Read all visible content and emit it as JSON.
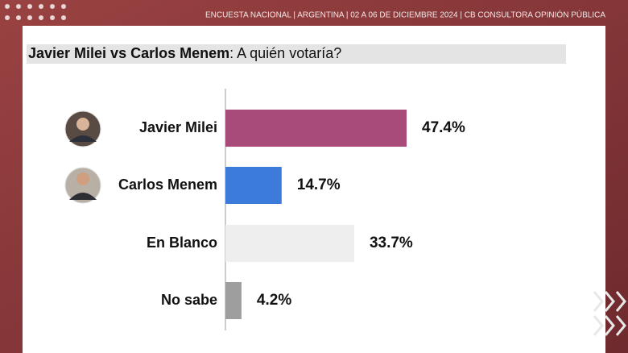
{
  "header": "ENCUESTA NACIONAL  |  ARGENTINA  | 02 A 06 DE DICIEMBRE 2024 | CB CONSULTORA OPINIÓN PÚBLICA",
  "chart_data": {
    "type": "hbar",
    "title": {
      "bold": "Javier Milei vs Carlos Menem",
      "rest": ": A quién votaría?"
    },
    "categories": [
      "Javier Milei",
      "Carlos Menem",
      "En Blanco",
      "No sabe"
    ],
    "values": [
      47.4,
      14.7,
      33.7,
      4.2
    ],
    "value_labels": [
      "47.4%",
      "14.7%",
      "33.7%",
      "4.2%"
    ],
    "colors": [
      "#a84b7b",
      "#3c7bd9",
      "#eeeeee",
      "#9e9e9e"
    ]
  }
}
